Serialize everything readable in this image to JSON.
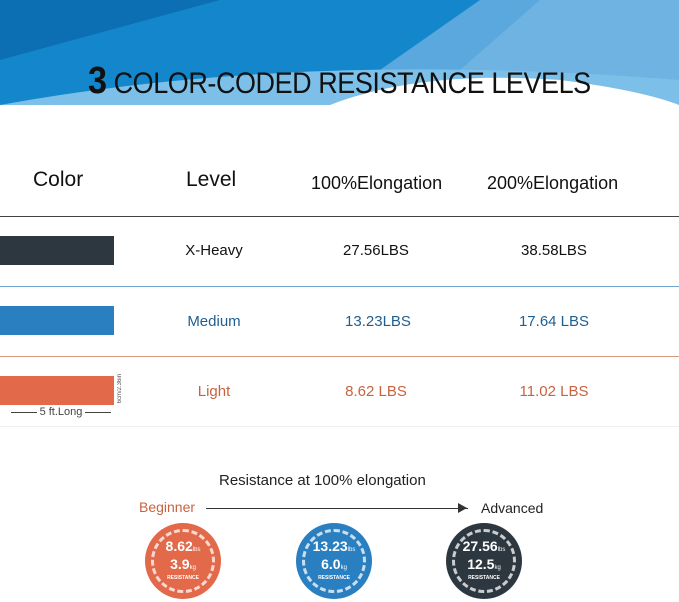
{
  "title": {
    "number": "3",
    "text": "COLOR-CODED RESISTANCE LEVELS"
  },
  "table": {
    "headers": [
      "Color",
      "Level",
      "100%Elongation",
      "200%Elongation"
    ],
    "rows": [
      {
        "level": "X-Heavy",
        "e100": "27.56LBS",
        "e200": "38.58LBS",
        "color": "#2d3740",
        "text_color": "#111111"
      },
      {
        "level": "Medium",
        "e100": "13.23LBS",
        "e200": "17.64 LBS",
        "color": "#2a7fc1",
        "text_color": "#1f5f8f"
      },
      {
        "level": "Light",
        "e100": "8.62 LBS",
        "e200": "11.02 LBS",
        "color": "#e2694a",
        "text_color": "#c8623f"
      }
    ],
    "length_label": "5 ft.Long",
    "width_label": "6cm/2.36in"
  },
  "scale": {
    "title": "Resistance at 100% elongation",
    "start": "Beginner",
    "end": "Advanced",
    "circles": [
      {
        "lbs": "8.62",
        "kg": "3.9",
        "unit_lbs": "lbs",
        "unit_kg": "kg",
        "label": "RESISTANCE",
        "color": "#e2694a"
      },
      {
        "lbs": "13.23",
        "kg": "6.0",
        "unit_lbs": "lbs",
        "unit_kg": "kg",
        "label": "RESISTANCE",
        "color": "#2a7fc1"
      },
      {
        "lbs": "27.56",
        "kg": "12.5",
        "unit_lbs": "lbs",
        "unit_kg": "kg",
        "label": "RESISTANCE",
        "color": "#2d3740"
      }
    ]
  }
}
